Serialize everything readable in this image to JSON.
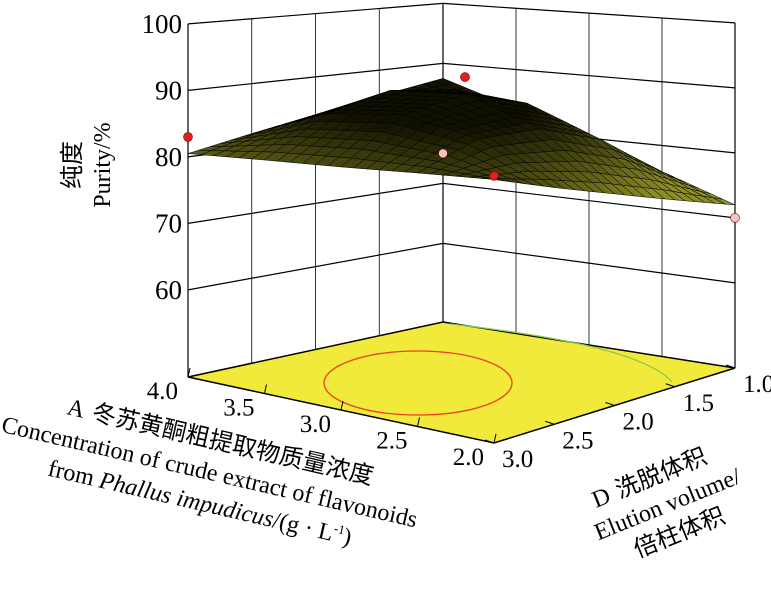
{
  "chart_data": {
    "type": "surface3d",
    "x_axis": {
      "code": "A",
      "label_cn": "冬苏黄酮粗提取物质量浓度",
      "label_en_1": "Concentration of crude extract of flavonoids",
      "label_en_2_prefix": "from ",
      "label_en_2_italic": "Phallus impudicus",
      "label_en_2_unit": "/(g · L",
      "label_en_2_sup": "-1",
      "label_en_2_close": ")",
      "range": [
        2.0,
        4.0
      ],
      "ticks": [
        "4.0",
        "3.5",
        "3.0",
        "2.5",
        "2.0"
      ],
      "tick_values": [
        4.0,
        3.5,
        3.0,
        2.5,
        2.0
      ]
    },
    "y_axis": {
      "code": "D",
      "label_cn": "洗脱体积",
      "label_en": "Elution volume/",
      "label_unit_cn": "倍柱体积",
      "range": [
        1.0,
        3.0
      ],
      "ticks": [
        "1.0",
        "1.5",
        "2.0",
        "2.5",
        "3.0"
      ],
      "tick_values": [
        1.0,
        1.5,
        2.0,
        2.5,
        3.0
      ]
    },
    "z_axis": {
      "label_cn": "纯度",
      "label_en": "Purity/%",
      "range": [
        47,
        100
      ],
      "ticks": [
        "60",
        "70",
        "80",
        "90",
        "100"
      ],
      "tick_values": [
        60,
        70,
        80,
        90,
        100
      ]
    },
    "surface": {
      "a_values": [
        2.0,
        2.5,
        3.0,
        3.5,
        4.0
      ],
      "d_values": [
        1.0,
        1.5,
        2.0,
        2.5,
        3.0
      ],
      "z": [
        [
          72.0,
          74.9,
          77.8,
          80.6,
          83.5
        ],
        [
          75.9,
          82.7,
          86.0,
          86.1,
          82.8
        ],
        [
          79.8,
          87.1,
          89.9,
          88.2,
          82.0
        ],
        [
          83.6,
          88.1,
          89.2,
          86.9,
          81.3
        ],
        [
          87.5,
          85.8,
          84.0,
          82.3,
          80.5
        ]
      ]
    },
    "design_points": [
      {
        "a": 4.0,
        "d": 3.0,
        "z": 83.0,
        "above_surface": true
      },
      {
        "a": 2.0,
        "d": 3.0,
        "z": 84.0,
        "above_surface": true
      },
      {
        "a": 3.0,
        "d": 2.0,
        "z": 92.5,
        "above_surface": true
      },
      {
        "a": 4.0,
        "d": 1.0,
        "z": 75.0,
        "above_surface": false
      },
      {
        "a": 2.0,
        "d": 1.0,
        "z": 70.0,
        "above_surface": false
      }
    ],
    "contour_floor": true,
    "grid": true,
    "colors": {
      "floor": "#f1ea3a",
      "surface_high": "#111100",
      "surface_low": "#8e8e28",
      "point_above": "#e0201c",
      "point_below": "#f4c4c0",
      "contour_inner": "#e8401c",
      "contour_outer": "#8cc850"
    }
  }
}
